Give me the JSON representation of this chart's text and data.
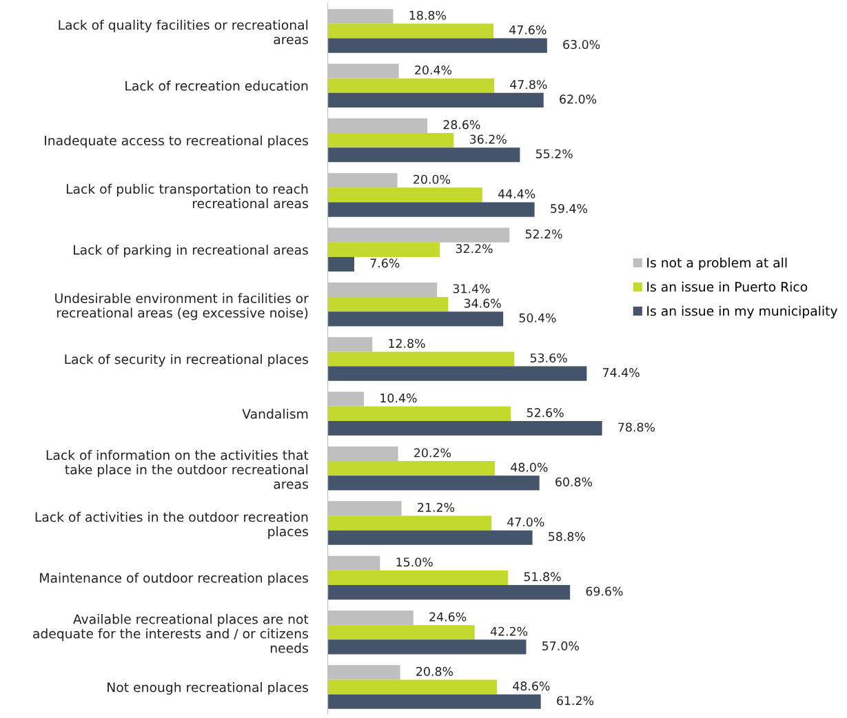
{
  "chart_data": {
    "type": "bar",
    "orientation": "horizontal",
    "categories": [
      "Lack of quality facilities or recreational\nareas",
      "Lack of recreation education",
      "Inadequate access to recreational places",
      "Lack of public transportation to reach\nrecreational areas",
      "Lack of parking in recreational areas",
      "Undesirable environment in facilities or\nrecreational areas (eg excessive noise)",
      "Lack of security in recreational places",
      "Vandalism",
      "Lack of information on the activities that\ntake place in the outdoor recreational\nareas",
      "Lack of activities in the outdoor recreation\nplaces",
      "Maintenance of outdoor recreation places",
      "Available recreational places are not\nadequate for the interests and / or citizens\nneeds",
      "Not enough recreational places"
    ],
    "series": [
      {
        "name": "Is not a problem at all",
        "color": "#bfbfbf",
        "values": [
          18.8,
          20.4,
          28.6,
          20.0,
          52.2,
          31.4,
          12.8,
          10.4,
          20.2,
          21.2,
          15.0,
          24.6,
          20.8
        ],
        "value_labels": [
          "18.8%",
          "20.4%",
          "28.6%",
          "20.0%",
          "52.2%",
          "31.4%",
          "12.8%",
          "10.4%",
          "20.2%",
          "21.2%",
          "15.0%",
          "24.6%",
          "20.8%"
        ]
      },
      {
        "name": "Is an issue in Puerto Rico",
        "color": "#c4d82e",
        "values": [
          47.6,
          47.8,
          36.2,
          44.4,
          32.2,
          34.6,
          53.6,
          52.6,
          48.0,
          47.0,
          51.8,
          42.2,
          48.6
        ],
        "value_labels": [
          "47.6%",
          "47.8%",
          "36.2%",
          "44.4%",
          "32.2%",
          "34.6%",
          "53.6%",
          "52.6%",
          "48.0%",
          "47.0%",
          "51.8%",
          "42.2%",
          "48.6%"
        ]
      },
      {
        "name": "Is an issue in my municipality",
        "color": "#44546a",
        "values": [
          63.0,
          62.0,
          55.2,
          59.4,
          7.6,
          50.4,
          74.4,
          78.8,
          60.8,
          58.8,
          69.6,
          57.0,
          61.2
        ],
        "value_labels": [
          "63.0%",
          "62.0%",
          "55.2%",
          "59.4%",
          "7.6%",
          "50.4%",
          "74.4%",
          "78.8%",
          "60.8%",
          "58.8%",
          "69.6%",
          "57.0%",
          "61.2%"
        ]
      }
    ],
    "legend": "right",
    "grid": false
  }
}
